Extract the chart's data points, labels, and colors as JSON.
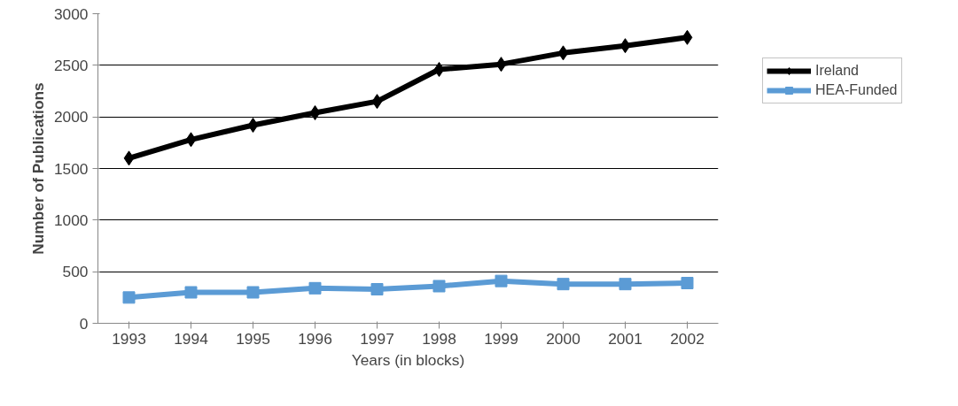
{
  "chart_data": {
    "type": "line",
    "xlabel": "Years (in blocks)",
    "ylabel": "Number of Publications",
    "categories": [
      "1993",
      "1994",
      "1995",
      "1996",
      "1997",
      "1998",
      "1999",
      "2000",
      "2001",
      "2002"
    ],
    "series": [
      {
        "name": "Ireland",
        "color": "#000000",
        "marker": "diamond",
        "values": [
          1600,
          1780,
          1920,
          2040,
          2150,
          2460,
          2510,
          2620,
          2690,
          2770
        ]
      },
      {
        "name": "HEA-Funded",
        "color": "#5b9bd5",
        "marker": "square",
        "values": [
          250,
          300,
          300,
          340,
          330,
          360,
          410,
          380,
          380,
          390
        ]
      }
    ],
    "ylim": [
      0,
      3000
    ],
    "yticks": [
      0,
      500,
      1000,
      1500,
      2000,
      2500,
      3000
    ],
    "grid": "y",
    "legend": "right",
    "line_style": "solid"
  }
}
